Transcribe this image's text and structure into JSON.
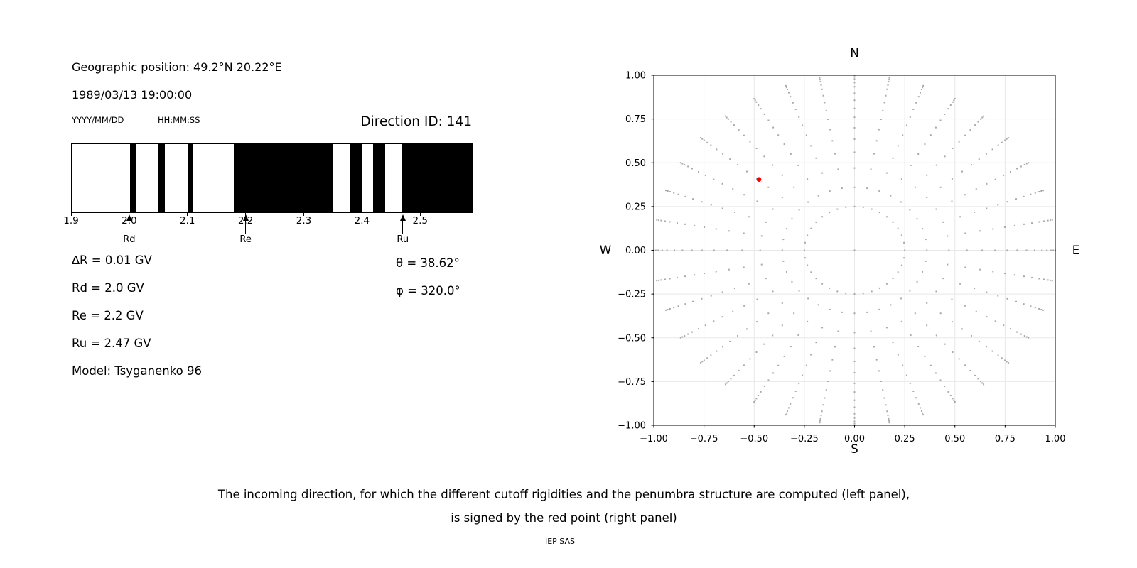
{
  "header": {
    "geo_position": "Geographic position: 49.2°N 20.22°E",
    "datetime_value": "1989/03/13 19:00:00",
    "date_format_label": "YYYY/MM/DD",
    "time_format_label": "HH:MM:SS",
    "direction_id_label": "Direction ID: 141"
  },
  "left_panel": {
    "delta_r": "∆R = 0.01 GV",
    "rd": "Rd = 2.0 GV",
    "re": "Re = 2.2 GV",
    "ru": "Ru = 2.47 GV",
    "model": "Model: Tsyganenko 96",
    "theta": "θ = 38.62°",
    "phi": "φ = 320.0°"
  },
  "caption": {
    "line1": "The incoming direction, for which the different cutoff rigidities and the penumbra structure are computed (left panel),",
    "line2": "is signed by the red point (right panel)",
    "credit": "IEP SAS"
  },
  "colors": {
    "forbidden_band": "#000000",
    "grid_dot": "#9a9a9a",
    "red_point": "#ff0000",
    "gridline": "#e8e8e8",
    "axis": "#000000"
  },
  "chart_data": [
    {
      "type": "bar",
      "title": "",
      "xlabel": "",
      "xlim": [
        1.9,
        2.59
      ],
      "xticks": [
        1.9,
        2.0,
        2.1,
        2.2,
        2.3,
        2.4,
        2.5
      ],
      "allowed_color": "white",
      "forbidden_color": "black",
      "forbidden_bands_gv": [
        [
          2.0,
          2.01
        ],
        [
          2.05,
          2.06
        ],
        [
          2.1,
          2.11
        ],
        [
          2.18,
          2.35
        ],
        [
          2.38,
          2.4
        ],
        [
          2.42,
          2.44
        ],
        [
          2.47,
          2.59
        ]
      ],
      "markers": [
        {
          "label": "Rd",
          "rigidity_gv": 2.0
        },
        {
          "label": "Re",
          "rigidity_gv": 2.2
        },
        {
          "label": "Ru",
          "rigidity_gv": 2.47
        }
      ]
    },
    {
      "type": "scatter",
      "title": "",
      "xlim": [
        -1.0,
        1.0
      ],
      "ylim": [
        -1.0,
        1.0
      ],
      "xticks": [
        -1.0,
        -0.75,
        -0.5,
        -0.25,
        0.0,
        0.25,
        0.5,
        0.75,
        1.0
      ],
      "yticks": [
        -1.0,
        -0.75,
        -0.5,
        -0.25,
        0.0,
        0.25,
        0.5,
        0.75,
        1.0
      ],
      "grid": true,
      "compass": {
        "top": "N",
        "bottom": "S",
        "left": "W",
        "right": "E"
      },
      "spokes": {
        "azimuth_count": 36,
        "azimuth_step_deg": 10,
        "dot_radii": [
          0.25,
          0.36,
          0.47,
          0.56,
          0.635,
          0.7,
          0.76,
          0.81,
          0.857,
          0.897,
          0.934,
          0.958,
          0.978,
          0.99,
          1.0
        ],
        "center_dot": true
      },
      "red_point": {
        "x": -0.476,
        "y": 0.405,
        "theta_deg": 38.62,
        "phi_deg": 320.0
      }
    }
  ]
}
